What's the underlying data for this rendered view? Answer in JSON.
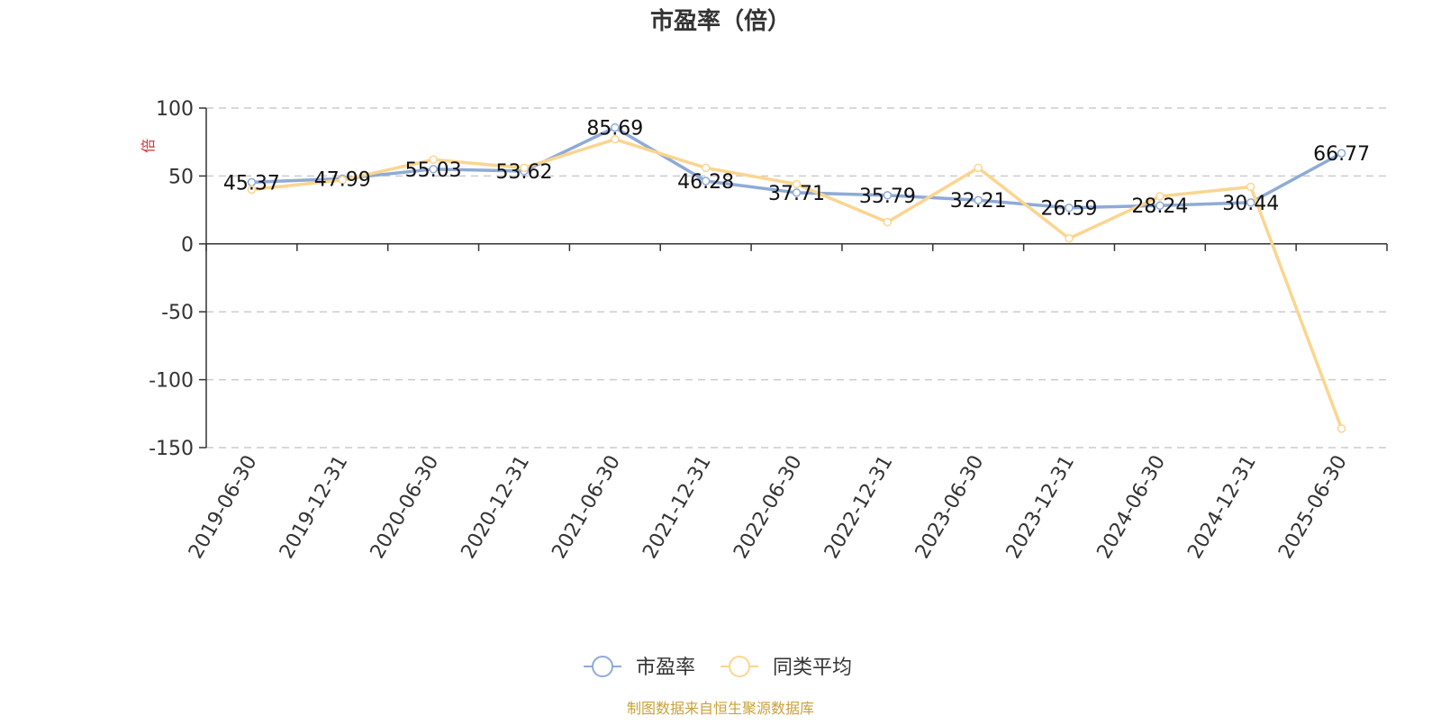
{
  "chart_data": {
    "type": "line",
    "title": "市盈率（倍）",
    "ylabel": "倍",
    "xlabel": "",
    "ylim": [
      -150,
      100
    ],
    "yticks": [
      100,
      50,
      0,
      -50,
      -100,
      -150
    ],
    "grid": true,
    "legend_position": "bottom-center",
    "categories": [
      "2019-06-30",
      "2019-12-31",
      "2020-06-30",
      "2020-12-31",
      "2021-06-30",
      "2021-12-31",
      "2022-06-30",
      "2022-12-31",
      "2023-06-30",
      "2023-12-31",
      "2024-06-30",
      "2024-12-31",
      "2025-06-30"
    ],
    "series": [
      {
        "name": "市盈率",
        "color": "#8eaad8",
        "values": [
          45.37,
          47.99,
          55.03,
          53.62,
          85.69,
          46.28,
          37.71,
          35.79,
          32.21,
          26.59,
          28.24,
          30.44,
          66.77
        ],
        "labels": [
          "45.37",
          "47.99",
          "55.03",
          "53.62",
          "85.69",
          "46.28",
          "37.71",
          "35.79",
          "32.21",
          "26.59",
          "28.24",
          "30.44",
          "66.77"
        ]
      },
      {
        "name": "同类平均",
        "color": "#fbd58f",
        "values": [
          40,
          47,
          62,
          56,
          77,
          56,
          44,
          16,
          56,
          4,
          35,
          42,
          -136
        ]
      }
    ]
  },
  "footer": {
    "source": "制图数据来自恒生聚源数据库"
  }
}
